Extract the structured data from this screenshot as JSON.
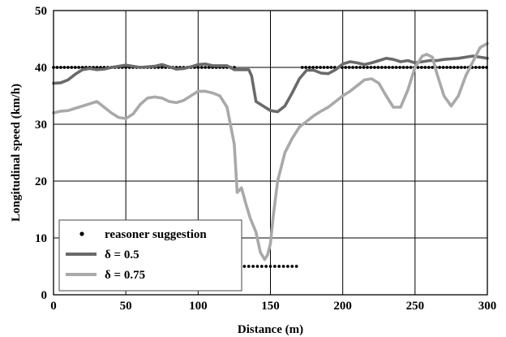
{
  "chart_data": {
    "type": "line",
    "title": "",
    "xlabel": "Distance (m)",
    "ylabel": "Longitudinal speed (km/h)",
    "xlim": [
      0,
      300
    ],
    "ylim": [
      0,
      50
    ],
    "xticks": [
      0,
      50,
      100,
      150,
      200,
      250,
      300
    ],
    "yticks": [
      0,
      10,
      20,
      30,
      40,
      50
    ],
    "grid": true,
    "legend_position": "bottom-left",
    "series": [
      {
        "name": "reasoner suggestion",
        "style": "dotted",
        "color": "#000000",
        "segments": [
          {
            "x": [
              0,
              2.5,
              5,
              7.5,
              10,
              12.5,
              15,
              17.5,
              20,
              22.5,
              25,
              27.5,
              30,
              32.5,
              35,
              37.5,
              40,
              42.5,
              45,
              47.5,
              50,
              52.5,
              55,
              57.5,
              60,
              62.5,
              65,
              67.5,
              70,
              72.5,
              75,
              77.5,
              80,
              82.5,
              85,
              87.5,
              90,
              92.5,
              95,
              97.5,
              100,
              102.5,
              105,
              107.5,
              110,
              112.5,
              115,
              117.5,
              120,
              122.5,
              125
            ],
            "y": 40
          },
          {
            "x": [
              126,
              129,
              132,
              135,
              138,
              141,
              144,
              147,
              150,
              153,
              156,
              159,
              162,
              165,
              168
            ],
            "y": 5
          },
          {
            "x": [
              172,
              174.5,
              177,
              179.5,
              182,
              184.5,
              187,
              189.5,
              192,
              194.5,
              197,
              199.5,
              202,
              204.5,
              207,
              209.5,
              212,
              214.5,
              217,
              219.5,
              222,
              224.5,
              227,
              229.5,
              232,
              234.5,
              237,
              239.5,
              242,
              244.5,
              247,
              249.5,
              252,
              254.5,
              257,
              259.5,
              262,
              264.5,
              267,
              269.5,
              272,
              274.5,
              277,
              279.5,
              282,
              284.5,
              287,
              289.5,
              292,
              294.5,
              297,
              299.5
            ],
            "y": 40
          }
        ]
      },
      {
        "name": "δ = 0.5",
        "style": "solid",
        "color": "#6a6a6a",
        "x": [
          0,
          5,
          10,
          15,
          20,
          25,
          30,
          35,
          40,
          45,
          50,
          55,
          60,
          65,
          70,
          75,
          80,
          85,
          90,
          95,
          100,
          105,
          110,
          115,
          120,
          125,
          130,
          135,
          137,
          140,
          145,
          150,
          155,
          160,
          165,
          170,
          175,
          180,
          185,
          190,
          195,
          200,
          205,
          210,
          215,
          220,
          225,
          230,
          235,
          240,
          245,
          250,
          255,
          260,
          265,
          270,
          275,
          280,
          285,
          290,
          295,
          300
        ],
        "y": [
          37.2,
          37.3,
          37.8,
          38.8,
          39.6,
          39.8,
          39.6,
          39.7,
          40.0,
          40.2,
          40.4,
          40.2,
          40.0,
          40.1,
          40.2,
          40.5,
          40.1,
          39.7,
          39.8,
          40.1,
          40.5,
          40.6,
          40.3,
          40.3,
          40.3,
          39.6,
          39.6,
          39.6,
          38.5,
          34.0,
          33.2,
          32.4,
          32.2,
          33.2,
          35.5,
          38.0,
          39.5,
          39.5,
          39.0,
          38.9,
          39.6,
          40.6,
          41.0,
          40.8,
          40.5,
          40.8,
          41.2,
          41.6,
          41.4,
          41.0,
          41.2,
          40.8,
          41.0,
          41.2,
          41.2,
          41.4,
          41.5,
          41.6,
          41.8,
          42.0,
          41.8,
          41.6
        ]
      },
      {
        "name": "δ = 0.75",
        "style": "solid",
        "color": "#a9a9a9",
        "x": [
          0,
          5,
          10,
          15,
          20,
          25,
          30,
          35,
          40,
          45,
          50,
          55,
          60,
          65,
          70,
          75,
          80,
          85,
          90,
          95,
          100,
          105,
          110,
          115,
          120,
          125,
          127,
          130,
          133,
          136,
          140,
          143,
          146,
          148,
          150,
          152,
          155,
          160,
          165,
          170,
          175,
          180,
          185,
          190,
          195,
          200,
          205,
          210,
          215,
          220,
          225,
          230,
          235,
          240,
          245,
          250,
          255,
          258,
          262,
          265,
          270,
          275,
          280,
          285,
          290,
          295,
          300
        ],
        "y": [
          32.0,
          32.3,
          32.4,
          32.8,
          33.2,
          33.6,
          34.0,
          33.0,
          32.0,
          31.2,
          31.0,
          31.8,
          33.5,
          34.6,
          34.8,
          34.6,
          34.0,
          33.8,
          34.2,
          35.0,
          35.8,
          35.8,
          35.5,
          35.0,
          33.0,
          26.5,
          18.0,
          18.8,
          16.0,
          13.5,
          11.0,
          7.5,
          6.2,
          7.0,
          9.0,
          14.0,
          20.0,
          25.0,
          27.5,
          29.5,
          30.5,
          31.5,
          32.3,
          33.0,
          34.0,
          35.0,
          35.8,
          36.8,
          37.8,
          38.0,
          37.2,
          35.0,
          33.0,
          33.0,
          36.0,
          40.0,
          42.0,
          42.3,
          41.8,
          39.0,
          35.0,
          33.2,
          35.0,
          38.5,
          41.0,
          43.5,
          44.2
        ]
      }
    ]
  }
}
